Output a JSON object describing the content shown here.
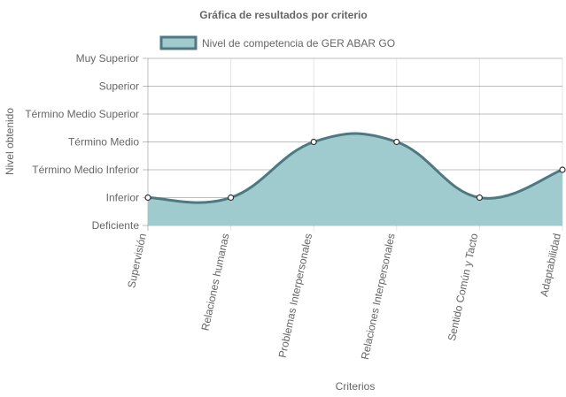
{
  "chart_data": {
    "type": "area",
    "title": "Gráfica de resultados por criterio",
    "xlabel": "Criterios",
    "ylabel": "Nivel obtenido",
    "categories": [
      "Supervisión",
      "Relaciones humanas",
      "Problemas Interpersonales",
      "Relaciones Interpersonales",
      "Sentido Común y Tacto",
      "Adaptabilidad"
    ],
    "y_levels": [
      "Deficiente",
      "Inferior",
      "Término Medio Inferior",
      "Término Medio",
      "Término Medio Superior",
      "Superior",
      "Muy Superior"
    ],
    "series": [
      {
        "name": "Nivel de competencia de GER ABAR GO",
        "values": [
          1,
          1,
          3,
          3,
          1,
          2
        ]
      }
    ],
    "ylim": [
      0,
      6
    ],
    "grid": true,
    "legend": "top",
    "colors": {
      "fill": "#a0cbce",
      "line": "#4f7880",
      "point_fill": "#ffffff",
      "text": "#666666"
    }
  }
}
